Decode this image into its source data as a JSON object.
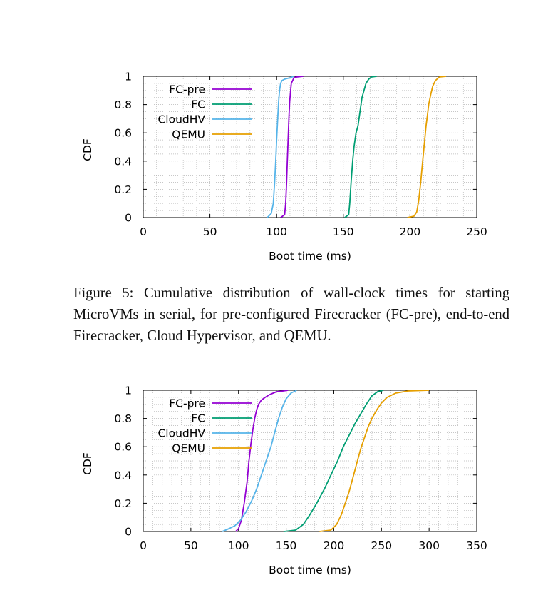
{
  "caption": "Figure 5: Cumulative distribution of wall-clock times for starting MicroVMs in serial, for pre-configured Firecracker (FC-pre), end-to-end Firecracker, Cloud Hypervisor, and QEMU.",
  "chart_data": [
    {
      "type": "line",
      "xlabel": "Boot time (ms)",
      "ylabel": "CDF",
      "xlim": [
        0,
        250
      ],
      "ylim": [
        0,
        1
      ],
      "xticks": [
        0,
        50,
        100,
        150,
        200,
        250
      ],
      "yticks": [
        0,
        0.2,
        0.4,
        0.6,
        0.8,
        1
      ],
      "grid": true,
      "legend_position": "top-left",
      "series": [
        {
          "name": "FC-pre",
          "color": "#9400d3",
          "x": [
            103,
            106,
            106.8,
            107.5,
            108,
            108.6,
            109.2,
            109.8,
            110.5,
            111,
            112,
            113,
            115,
            120
          ],
          "y": [
            0,
            0.02,
            0.1,
            0.25,
            0.4,
            0.55,
            0.7,
            0.82,
            0.9,
            0.95,
            0.97,
            0.99,
            0.995,
            1
          ]
        },
        {
          "name": "FC",
          "color": "#009e73",
          "x": [
            151,
            154,
            154.8,
            155.8,
            157,
            158,
            159.5,
            161,
            162.5,
            164,
            165.5,
            167,
            169,
            171,
            175
          ],
          "y": [
            0,
            0.02,
            0.1,
            0.25,
            0.4,
            0.5,
            0.6,
            0.65,
            0.75,
            0.85,
            0.9,
            0.95,
            0.98,
            0.995,
            1
          ]
        },
        {
          "name": "CloudHV",
          "color": "#56b4e9",
          "x": [
            93,
            96,
            97.5,
            98.5,
            99.3,
            100,
            100.8,
            101.5,
            102.2,
            103,
            104,
            106,
            110,
            113
          ],
          "y": [
            0,
            0.03,
            0.1,
            0.25,
            0.4,
            0.55,
            0.7,
            0.82,
            0.9,
            0.95,
            0.97,
            0.98,
            0.99,
            1
          ]
        },
        {
          "name": "QEMU",
          "color": "#e69f00",
          "x": [
            198,
            203,
            205,
            206.5,
            208,
            209,
            210,
            211,
            212,
            213,
            214,
            215.5,
            217,
            219,
            222,
            227
          ],
          "y": [
            0,
            0.01,
            0.04,
            0.12,
            0.25,
            0.35,
            0.45,
            0.55,
            0.65,
            0.72,
            0.8,
            0.87,
            0.93,
            0.97,
            0.995,
            1
          ]
        }
      ]
    },
    {
      "type": "line",
      "xlabel": "Boot time (ms)",
      "ylabel": "CDF",
      "xlim": [
        0,
        350
      ],
      "ylim": [
        0,
        1
      ],
      "xticks": [
        0,
        50,
        100,
        150,
        200,
        250,
        300,
        350
      ],
      "yticks": [
        0,
        0.2,
        0.4,
        0.6,
        0.8,
        1
      ],
      "grid": true,
      "legend_position": "top-left",
      "series": [
        {
          "name": "FC-pre",
          "color": "#9400d3",
          "x": [
            97,
            100,
            103,
            106,
            109,
            111,
            113,
            115,
            117,
            119,
            121,
            124,
            128,
            133,
            140,
            147,
            152
          ],
          "y": [
            0,
            0.02,
            0.08,
            0.2,
            0.35,
            0.5,
            0.62,
            0.72,
            0.8,
            0.86,
            0.9,
            0.93,
            0.95,
            0.97,
            0.99,
            0.995,
            1
          ]
        },
        {
          "name": "FC",
          "color": "#009e73",
          "x": [
            148,
            160,
            168,
            175,
            182,
            190,
            197,
            204,
            210,
            216,
            222,
            228,
            234,
            240,
            246,
            252
          ],
          "y": [
            0,
            0.01,
            0.05,
            0.12,
            0.2,
            0.3,
            0.4,
            0.5,
            0.6,
            0.68,
            0.76,
            0.83,
            0.9,
            0.96,
            0.99,
            1
          ]
        },
        {
          "name": "CloudHV",
          "color": "#56b4e9",
          "x": [
            83,
            90,
            96,
            102,
            108,
            114,
            119,
            124,
            129,
            134,
            138,
            142,
            146,
            150,
            155,
            161
          ],
          "y": [
            0,
            0.02,
            0.04,
            0.08,
            0.14,
            0.22,
            0.3,
            0.4,
            0.5,
            0.6,
            0.7,
            0.8,
            0.88,
            0.94,
            0.98,
            1
          ]
        },
        {
          "name": "QEMU",
          "color": "#e69f00",
          "x": [
            185,
            197,
            203,
            208,
            212,
            216,
            220,
            224,
            228,
            232,
            236,
            240,
            245,
            250,
            256,
            265,
            278,
            300
          ],
          "y": [
            0,
            0.01,
            0.05,
            0.12,
            0.2,
            0.28,
            0.38,
            0.48,
            0.58,
            0.66,
            0.74,
            0.8,
            0.86,
            0.91,
            0.95,
            0.98,
            0.995,
            1
          ]
        }
      ]
    }
  ]
}
